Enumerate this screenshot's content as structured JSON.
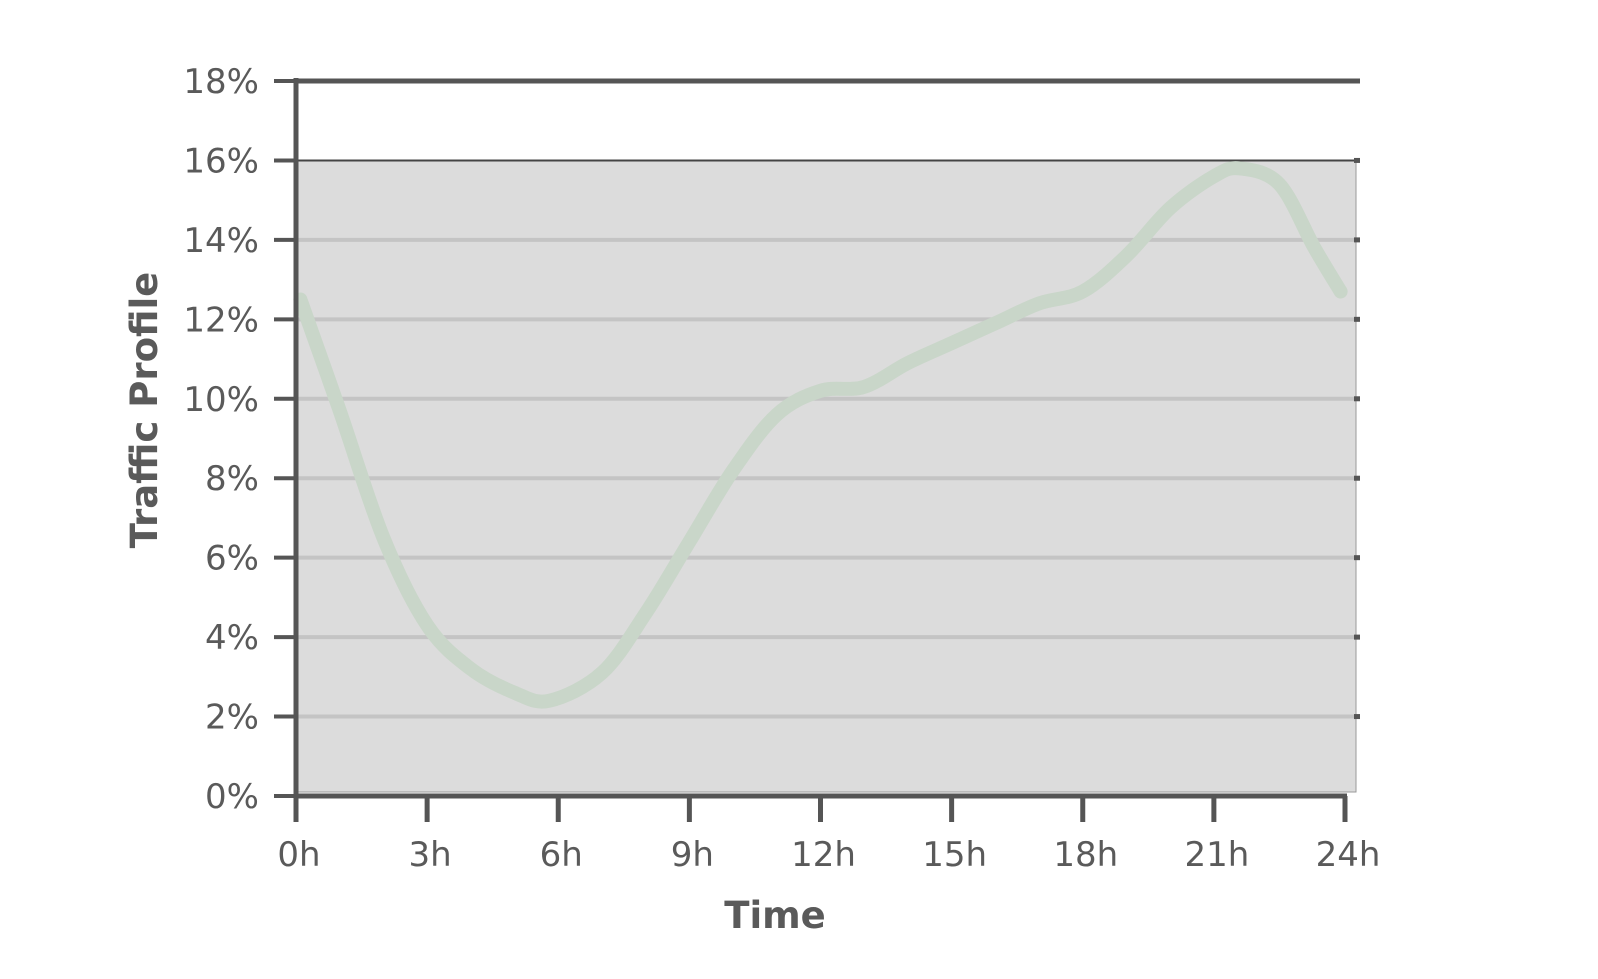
{
  "chart_data": {
    "type": "line",
    "title": "",
    "xlabel": "Time",
    "ylabel": "Traffic Profile",
    "xlim": [
      0,
      24
    ],
    "ylim": [
      0,
      18
    ],
    "x_ticks": [
      0,
      3,
      6,
      9,
      12,
      15,
      18,
      21,
      24
    ],
    "x_tick_labels": [
      "0h",
      "3h",
      "6h",
      "9h",
      "12h",
      "15h",
      "18h",
      "21h",
      "24h"
    ],
    "y_ticks": [
      0,
      2,
      4,
      6,
      8,
      10,
      12,
      14,
      16,
      18
    ],
    "y_tick_labels": [
      "0%",
      "2%",
      "4%",
      "6%",
      "8%",
      "10%",
      "12%",
      "14%",
      "16%",
      "18%"
    ],
    "grid": true,
    "shaded_region": {
      "y_from": 0,
      "y_to": 16,
      "color": "#dcdcdc"
    },
    "colors": {
      "line": "#c9d6c9",
      "axis": "#555555",
      "grid": "#c4c4c4",
      "tick_text": "#5a5a5a"
    },
    "series": [
      {
        "x": [
          0.1,
          1,
          2,
          3,
          4,
          5,
          5.8,
          7,
          8,
          9,
          10,
          11,
          12,
          13,
          14,
          15,
          16,
          17,
          18,
          19,
          20,
          21,
          21.6,
          22.5,
          23.3,
          23.9
        ],
        "values": [
          12.5,
          9.7,
          6.5,
          4.3,
          3.2,
          2.6,
          2.4,
          3.1,
          4.6,
          6.4,
          8.2,
          9.6,
          10.2,
          10.3,
          10.9,
          11.4,
          11.9,
          12.4,
          12.7,
          13.6,
          14.8,
          15.6,
          15.8,
          15.4,
          13.8,
          12.7
        ]
      }
    ]
  }
}
